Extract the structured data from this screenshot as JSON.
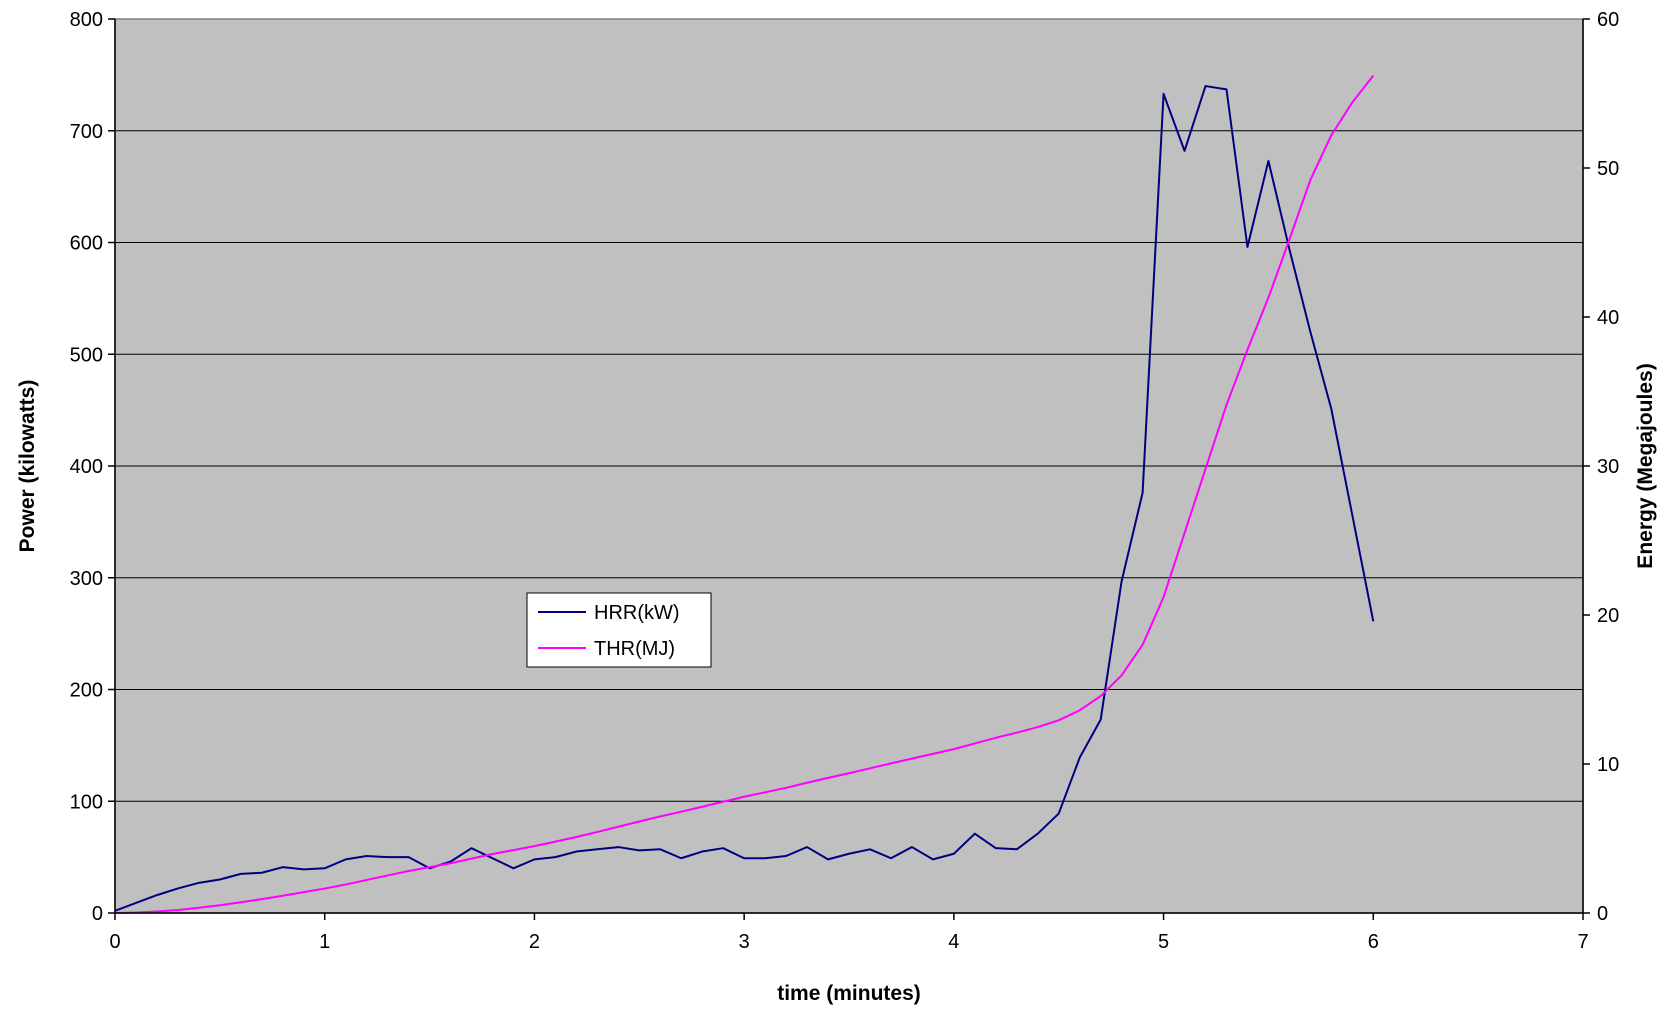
{
  "chart_data": {
    "type": "line",
    "title": "",
    "xlabel": "time (minutes)",
    "ylabel": "Power (kilowatts)",
    "y2label": "Energy (Megajoules)",
    "xlim": [
      0,
      7
    ],
    "ylim": [
      0,
      800
    ],
    "y2lim": [
      0,
      60
    ],
    "xticks": [
      "0",
      "1",
      "2",
      "3",
      "4",
      "5",
      "6",
      "7"
    ],
    "yticks": [
      "0",
      "100",
      "200",
      "300",
      "400",
      "500",
      "600",
      "700",
      "800"
    ],
    "y2ticks": [
      "0",
      "10",
      "20",
      "30",
      "40",
      "50",
      "60"
    ],
    "grid": "horizontal",
    "plot_background": "#c0c0c0",
    "legend_placement": "center-left",
    "series": [
      {
        "name": "HRR(kW)",
        "axis": "left",
        "color": "#000080",
        "x": [
          0,
          0.1,
          0.2,
          0.3,
          0.4,
          0.5,
          0.6,
          0.7,
          0.8,
          0.9,
          1.0,
          1.1,
          1.2,
          1.3,
          1.4,
          1.5,
          1.6,
          1.7,
          1.8,
          1.9,
          2.0,
          2.1,
          2.2,
          2.3,
          2.4,
          2.5,
          2.6,
          2.7,
          2.8,
          2.9,
          3.0,
          3.1,
          3.2,
          3.3,
          3.4,
          3.5,
          3.6,
          3.7,
          3.8,
          3.9,
          4.0,
          4.1,
          4.2,
          4.3,
          4.4,
          4.5,
          4.6,
          4.7,
          4.8,
          4.9,
          5.0,
          5.1,
          5.2,
          5.3,
          5.4,
          5.5,
          5.6,
          5.7,
          5.8,
          5.9,
          6.0
        ],
        "values": [
          2,
          9,
          16,
          22,
          27,
          30,
          35,
          36,
          41,
          39,
          40,
          48,
          51,
          50,
          50,
          40,
          46,
          58,
          49,
          40,
          48,
          50,
          55,
          57,
          59,
          56,
          57,
          49,
          55,
          58,
          49,
          49,
          51,
          59,
          48,
          53,
          57,
          49,
          59,
          48,
          53,
          71,
          58,
          57,
          71,
          89,
          139,
          173,
          297,
          376,
          733,
          682,
          740,
          737,
          596,
          673,
          594,
          520,
          451,
          356,
          261
        ]
      },
      {
        "name": "THR(MJ)",
        "axis": "right",
        "color": "#ff00ff",
        "x": [
          0,
          0.1,
          0.2,
          0.3,
          0.4,
          0.5,
          0.6,
          0.7,
          0.8,
          0.9,
          1.0,
          1.1,
          1.2,
          1.3,
          1.4,
          1.5,
          1.6,
          1.7,
          1.8,
          1.9,
          2.0,
          2.1,
          2.2,
          2.3,
          2.4,
          2.5,
          2.6,
          2.7,
          2.8,
          2.9,
          3.0,
          3.1,
          3.2,
          3.3,
          3.4,
          3.5,
          3.6,
          3.7,
          3.8,
          3.9,
          4.0,
          4.1,
          4.2,
          4.3,
          4.4,
          4.5,
          4.6,
          4.7,
          4.8,
          4.9,
          5.0,
          5.1,
          5.2,
          5.3,
          5.4,
          5.5,
          5.6,
          5.7,
          5.8,
          5.9,
          6.0
        ],
        "values": [
          0,
          0.03,
          0.1,
          0.2,
          0.35,
          0.52,
          0.72,
          0.93,
          1.16,
          1.4,
          1.64,
          1.91,
          2.22,
          2.52,
          2.82,
          3.08,
          3.34,
          3.65,
          3.96,
          4.22,
          4.49,
          4.79,
          5.1,
          5.44,
          5.79,
          6.14,
          6.48,
          6.8,
          7.13,
          7.47,
          7.8,
          8.1,
          8.4,
          8.74,
          9.07,
          9.38,
          9.71,
          10.04,
          10.36,
          10.68,
          11.0,
          11.38,
          11.76,
          12.1,
          12.48,
          12.93,
          13.6,
          14.56,
          15.95,
          18.0,
          21.2,
          25.5,
          29.8,
          34.1,
          37.8,
          41.3,
          45.2,
          49.2,
          52.2,
          54.4,
          56.2
        ]
      }
    ]
  }
}
